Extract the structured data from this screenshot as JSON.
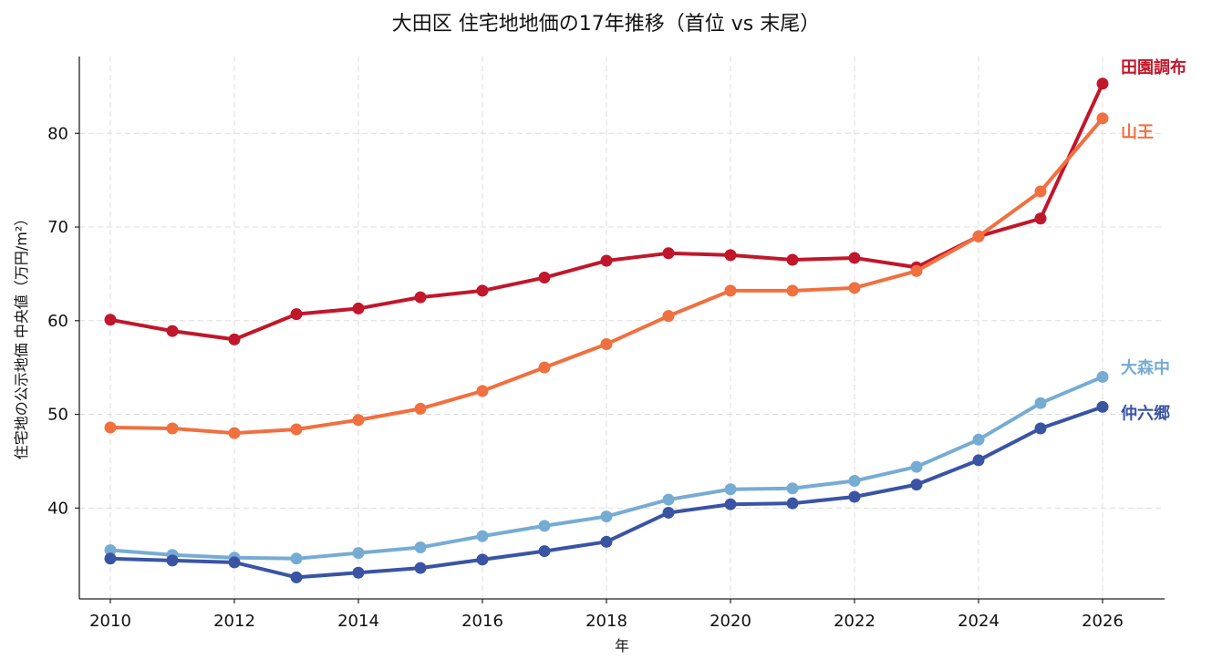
{
  "chart_data": {
    "type": "line",
    "title": "大田区 住宅地地価の17年推移（首位 vs 末尾）",
    "xlabel": "年",
    "ylabel": "住宅地の公示地価 中央値（万円/m²）",
    "x": [
      2010,
      2011,
      2012,
      2013,
      2014,
      2015,
      2016,
      2017,
      2018,
      2019,
      2020,
      2021,
      2022,
      2023,
      2024,
      2025,
      2026
    ],
    "xticks": [
      "2010",
      "2012",
      "2014",
      "2016",
      "2018",
      "2020",
      "2022",
      "2024",
      "2026"
    ],
    "yticks": [
      "40",
      "50",
      "60",
      "70",
      "80"
    ],
    "xlim": [
      2009.5,
      2027
    ],
    "ylim": [
      30.3,
      88.2
    ],
    "grid": true,
    "legend": "inline labels at line ends",
    "series": [
      {
        "name": "田園調布",
        "color": "#c0172b",
        "values": [
          60.1,
          58.9,
          58.0,
          60.7,
          61.3,
          62.5,
          63.2,
          64.6,
          66.4,
          67.2,
          67.0,
          66.5,
          66.7,
          65.7,
          69.0,
          70.9,
          85.3
        ]
      },
      {
        "name": "山王",
        "color": "#f07040",
        "values": [
          48.6,
          48.5,
          48.0,
          48.4,
          49.4,
          50.6,
          52.5,
          55.0,
          57.5,
          60.5,
          63.2,
          63.2,
          63.5,
          65.3,
          69.0,
          73.8,
          81.6
        ]
      },
      {
        "name": "大森中",
        "color": "#76acd3",
        "values": [
          35.5,
          35.0,
          34.7,
          34.6,
          35.2,
          35.8,
          37.0,
          38.1,
          39.1,
          40.9,
          42.0,
          42.1,
          42.9,
          44.4,
          47.3,
          51.2,
          54.0
        ]
      },
      {
        "name": "仲六郷",
        "color": "#3a54a4",
        "values": [
          34.6,
          34.4,
          34.2,
          32.6,
          33.1,
          33.6,
          34.5,
          35.4,
          36.4,
          39.5,
          40.4,
          40.5,
          41.2,
          42.5,
          45.1,
          48.5,
          50.8
        ]
      }
    ]
  }
}
